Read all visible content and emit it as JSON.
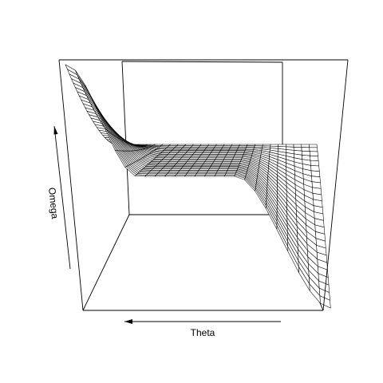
{
  "chart_data": {
    "type": "surface",
    "title": "",
    "axes": {
      "x": {
        "label": "Theta",
        "tick_labels": false
      },
      "y": {
        "label": "Omega",
        "tick_labels": false
      },
      "z": {
        "label": "",
        "tick_labels": false
      }
    },
    "perspective": {
      "phi": 0,
      "theta": 180
    },
    "box": true,
    "grid": false,
    "legend": "none",
    "surface": {
      "shape": "smooth S-shaped sheet: high near one end of Omega, flat plateau in the middle, low near the other end",
      "mesh_rows": 27,
      "mesh_cols": 27,
      "line_color": "#000000",
      "fill_color": "#ffffff"
    }
  }
}
